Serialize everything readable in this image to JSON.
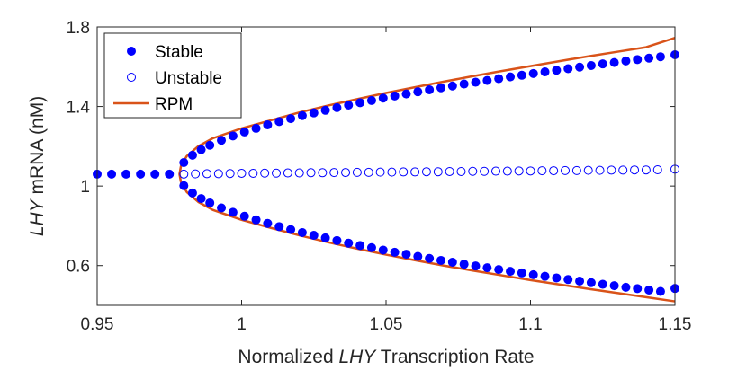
{
  "chart_data": {
    "type": "scatter",
    "xlabel_parts": [
      "Normalized ",
      "LHY",
      " Transcription Rate"
    ],
    "ylabel_parts": [
      "LHY",
      " mRNA (nM)"
    ],
    "xlim": [
      0.95,
      1.15
    ],
    "ylim": [
      0.4,
      1.8
    ],
    "xticks": [
      0.95,
      1,
      1.05,
      1.1,
      1.15
    ],
    "xtick_labels": [
      "0.95",
      "1",
      "1.05",
      "1.1",
      "1.15"
    ],
    "yticks": [
      0.6,
      1,
      1.4,
      1.8
    ],
    "ytick_labels": [
      "0.6",
      "1",
      "1.4",
      "1.8"
    ],
    "legend_position": "top-left",
    "bifurcation": {
      "x0": 0.9785,
      "y0": 1.06
    },
    "series": [
      {
        "name": "Stable",
        "marker": "filled-circle",
        "color": "#0000ff",
        "points": [
          [
            0.95,
            1.06
          ],
          [
            0.955,
            1.06
          ],
          [
            0.96,
            1.06
          ],
          [
            0.965,
            1.06
          ],
          [
            0.97,
            1.06
          ],
          [
            0.975,
            1.06
          ],
          [
            0.98,
            1.118
          ],
          [
            0.983,
            1.155
          ],
          [
            0.986,
            1.183
          ],
          [
            0.989,
            1.205
          ],
          [
            0.993,
            1.23
          ],
          [
            0.997,
            1.252
          ],
          [
            1.001,
            1.272
          ],
          [
            1.005,
            1.29
          ],
          [
            1.009,
            1.308
          ],
          [
            1.013,
            1.324
          ],
          [
            1.017,
            1.339
          ],
          [
            1.021,
            1.354
          ],
          [
            1.025,
            1.368
          ],
          [
            1.029,
            1.381
          ],
          [
            1.033,
            1.394
          ],
          [
            1.037,
            1.407
          ],
          [
            1.041,
            1.419
          ],
          [
            1.045,
            1.43
          ],
          [
            1.049,
            1.442
          ],
          [
            1.053,
            1.453
          ],
          [
            1.057,
            1.463
          ],
          [
            1.061,
            1.474
          ],
          [
            1.065,
            1.484
          ],
          [
            1.069,
            1.494
          ],
          [
            1.073,
            1.503
          ],
          [
            1.077,
            1.513
          ],
          [
            1.081,
            1.522
          ],
          [
            1.085,
            1.531
          ],
          [
            1.089,
            1.54
          ],
          [
            1.093,
            1.549
          ],
          [
            1.097,
            1.557
          ],
          [
            1.101,
            1.566
          ],
          [
            1.105,
            1.574
          ],
          [
            1.109,
            1.582
          ],
          [
            1.113,
            1.59
          ],
          [
            1.117,
            1.598
          ],
          [
            1.121,
            1.606
          ],
          [
            1.125,
            1.614
          ],
          [
            1.129,
            1.621
          ],
          [
            1.133,
            1.629
          ],
          [
            1.137,
            1.636
          ],
          [
            1.141,
            1.643
          ],
          [
            1.145,
            1.65
          ],
          [
            1.15,
            1.66
          ],
          [
            0.98,
            1.002
          ],
          [
            0.983,
            0.965
          ],
          [
            0.986,
            0.937
          ],
          [
            0.989,
            0.915
          ],
          [
            0.993,
            0.89
          ],
          [
            0.997,
            0.868
          ],
          [
            1.001,
            0.848
          ],
          [
            1.005,
            0.83
          ],
          [
            1.009,
            0.812
          ],
          [
            1.013,
            0.796
          ],
          [
            1.017,
            0.781
          ],
          [
            1.021,
            0.766
          ],
          [
            1.025,
            0.752
          ],
          [
            1.029,
            0.739
          ],
          [
            1.033,
            0.726
          ],
          [
            1.037,
            0.713
          ],
          [
            1.041,
            0.701
          ],
          [
            1.045,
            0.69
          ],
          [
            1.049,
            0.678
          ],
          [
            1.053,
            0.667
          ],
          [
            1.057,
            0.657
          ],
          [
            1.061,
            0.646
          ],
          [
            1.065,
            0.636
          ],
          [
            1.069,
            0.626
          ],
          [
            1.073,
            0.617
          ],
          [
            1.077,
            0.607
          ],
          [
            1.081,
            0.598
          ],
          [
            1.085,
            0.589
          ],
          [
            1.089,
            0.58
          ],
          [
            1.093,
            0.571
          ],
          [
            1.097,
            0.563
          ],
          [
            1.101,
            0.554
          ],
          [
            1.105,
            0.546
          ],
          [
            1.109,
            0.538
          ],
          [
            1.113,
            0.53
          ],
          [
            1.117,
            0.522
          ],
          [
            1.121,
            0.514
          ],
          [
            1.125,
            0.506
          ],
          [
            1.129,
            0.499
          ],
          [
            1.133,
            0.491
          ],
          [
            1.137,
            0.484
          ],
          [
            1.141,
            0.477
          ],
          [
            1.145,
            0.47
          ],
          [
            1.15,
            0.485
          ]
        ]
      },
      {
        "name": "Unstable",
        "marker": "open-circle",
        "color": "#0000ff",
        "points": [
          [
            0.98,
            1.06
          ],
          [
            0.984,
            1.061
          ],
          [
            0.988,
            1.062
          ],
          [
            0.992,
            1.062
          ],
          [
            0.996,
            1.063
          ],
          [
            1.0,
            1.064
          ],
          [
            1.004,
            1.064
          ],
          [
            1.008,
            1.065
          ],
          [
            1.012,
            1.065
          ],
          [
            1.016,
            1.066
          ],
          [
            1.02,
            1.066
          ],
          [
            1.024,
            1.067
          ],
          [
            1.028,
            1.067
          ],
          [
            1.032,
            1.068
          ],
          [
            1.036,
            1.068
          ],
          [
            1.04,
            1.069
          ],
          [
            1.044,
            1.069
          ],
          [
            1.048,
            1.07
          ],
          [
            1.052,
            1.07
          ],
          [
            1.056,
            1.071
          ],
          [
            1.06,
            1.071
          ],
          [
            1.064,
            1.072
          ],
          [
            1.068,
            1.072
          ],
          [
            1.072,
            1.073
          ],
          [
            1.076,
            1.073
          ],
          [
            1.08,
            1.074
          ],
          [
            1.084,
            1.074
          ],
          [
            1.088,
            1.075
          ],
          [
            1.092,
            1.075
          ],
          [
            1.096,
            1.076
          ],
          [
            1.1,
            1.076
          ],
          [
            1.104,
            1.077
          ],
          [
            1.108,
            1.077
          ],
          [
            1.112,
            1.078
          ],
          [
            1.116,
            1.078
          ],
          [
            1.12,
            1.079
          ],
          [
            1.124,
            1.079
          ],
          [
            1.128,
            1.08
          ],
          [
            1.132,
            1.08
          ],
          [
            1.136,
            1.081
          ],
          [
            1.14,
            1.081
          ],
          [
            1.144,
            1.082
          ],
          [
            1.15,
            1.085
          ]
        ]
      },
      {
        "name": "RPM",
        "marker": "line",
        "color": "#d95319",
        "upper": [
          [
            0.9785,
            1.06
          ],
          [
            0.979,
            1.1
          ],
          [
            0.981,
            1.15
          ],
          [
            0.985,
            1.2
          ],
          [
            0.99,
            1.24
          ],
          [
            1.0,
            1.29
          ],
          [
            1.01,
            1.33
          ],
          [
            1.02,
            1.37
          ],
          [
            1.03,
            1.405
          ],
          [
            1.04,
            1.437
          ],
          [
            1.05,
            1.468
          ],
          [
            1.06,
            1.497
          ],
          [
            1.07,
            1.525
          ],
          [
            1.08,
            1.552
          ],
          [
            1.09,
            1.578
          ],
          [
            1.1,
            1.603
          ],
          [
            1.11,
            1.628
          ],
          [
            1.12,
            1.652
          ],
          [
            1.13,
            1.675
          ],
          [
            1.14,
            1.698
          ],
          [
            1.15,
            1.745
          ]
        ],
        "lower": [
          [
            0.9785,
            1.06
          ],
          [
            0.979,
            1.02
          ],
          [
            0.981,
            0.97
          ],
          [
            0.985,
            0.92
          ],
          [
            0.99,
            0.88
          ],
          [
            1.0,
            0.83
          ],
          [
            1.01,
            0.79
          ],
          [
            1.02,
            0.752
          ],
          [
            1.03,
            0.717
          ],
          [
            1.04,
            0.685
          ],
          [
            1.05,
            0.655
          ],
          [
            1.06,
            0.627
          ],
          [
            1.07,
            0.6
          ],
          [
            1.08,
            0.575
          ],
          [
            1.09,
            0.551
          ],
          [
            1.1,
            0.527
          ],
          [
            1.11,
            0.505
          ],
          [
            1.12,
            0.483
          ],
          [
            1.13,
            0.462
          ],
          [
            1.14,
            0.441
          ],
          [
            1.15,
            0.42
          ]
        ]
      }
    ]
  }
}
